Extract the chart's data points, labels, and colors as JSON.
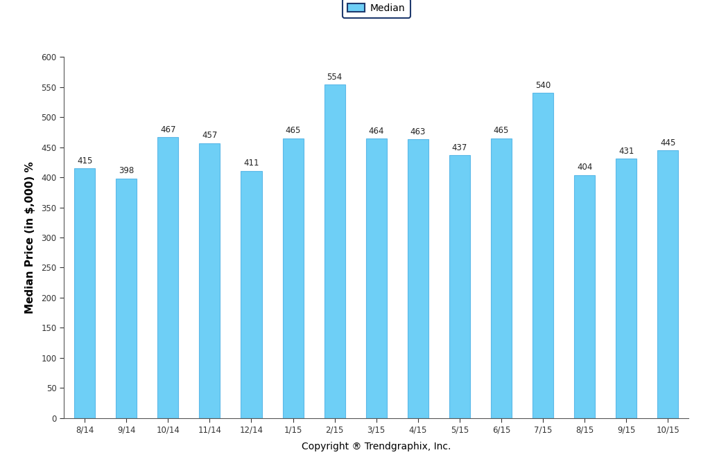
{
  "categories": [
    "8/14",
    "9/14",
    "10/14",
    "11/14",
    "12/14",
    "1/15",
    "2/15",
    "3/15",
    "4/15",
    "5/15",
    "6/15",
    "7/15",
    "8/15",
    "9/15",
    "10/15"
  ],
  "values": [
    415,
    398,
    467,
    457,
    411,
    465,
    554,
    464,
    463,
    437,
    465,
    540,
    404,
    431,
    445
  ],
  "bar_color": "#6ECFF6",
  "bar_edge_color": "#5BB8E8",
  "ylim": [
    0,
    600
  ],
  "yticks": [
    0,
    50,
    100,
    150,
    200,
    250,
    300,
    350,
    400,
    450,
    500,
    550,
    600
  ],
  "ylabel": "Median Price (in $,000) %",
  "xlabel": "Copyright ® Trendgraphix, Inc.",
  "legend_label": "Median",
  "legend_facecolor": "#6ECFF6",
  "legend_edgecolor": "#1F3A6E",
  "bar_width": 0.5,
  "annotation_fontsize": 8.5,
  "annotation_color": "#222222",
  "ylabel_fontsize": 11,
  "xlabel_fontsize": 10,
  "tick_fontsize": 8.5,
  "background_color": "#ffffff"
}
